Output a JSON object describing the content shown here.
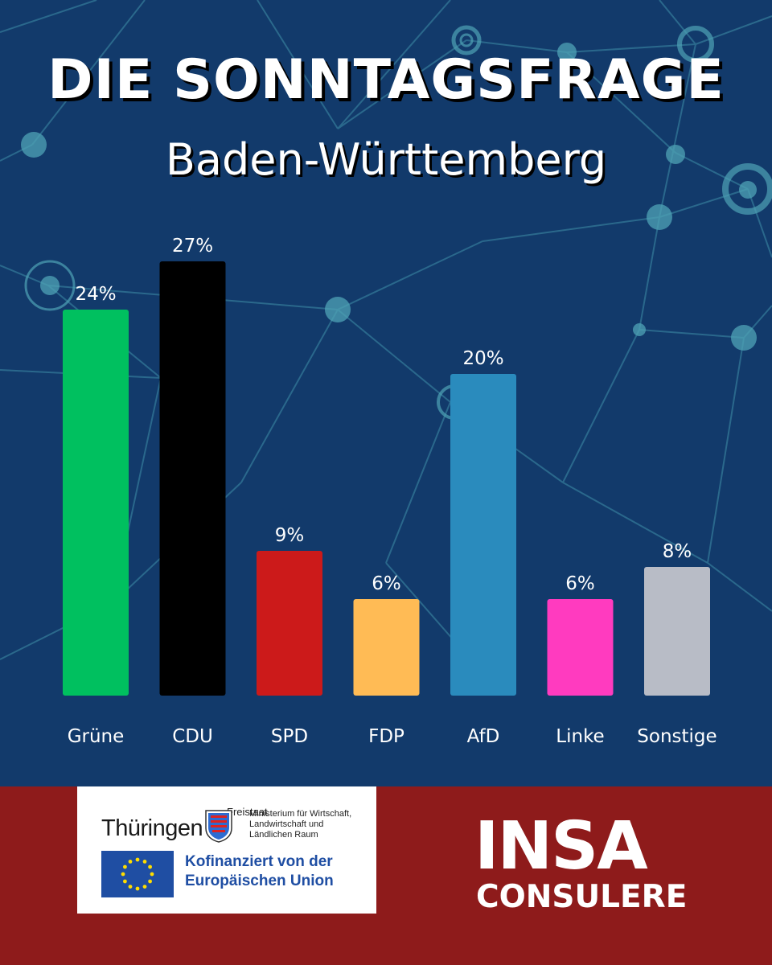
{
  "header": {
    "title": "DIE SONNTAGSFRAGE",
    "subtitle": "Baden-Württemberg"
  },
  "chart_data": {
    "type": "bar",
    "categories": [
      "Grüne",
      "CDU",
      "SPD",
      "FDP",
      "AfD",
      "Linke",
      "Sonstige"
    ],
    "values": [
      24,
      27,
      9,
      6,
      20,
      6,
      8
    ],
    "value_labels": [
      "24%",
      "27%",
      "9%",
      "6%",
      "20%",
      "6%",
      "8%"
    ],
    "colors": [
      "#00c05f",
      "#000000",
      "#cc1a1a",
      "#ffbb55",
      "#2a8bbd",
      "#ff3bbf",
      "#b8bcc6"
    ],
    "unit": "%",
    "ylim": [
      0,
      27
    ],
    "grid": false,
    "legend": "none",
    "title": "",
    "xlabel": "",
    "ylabel": ""
  },
  "footer": {
    "sponsor": {
      "state_small": "Freistaat",
      "state_name": "Thüringen",
      "ministry_line1": "Ministerium für Wirtschaft,",
      "ministry_line2": "Landwirtschaft und",
      "ministry_line3": "Ländlichen Raum",
      "eu_line1": "Kofinanziert von der",
      "eu_line2": "Europäischen Union",
      "eu_flag_color": "#1f4ea3"
    },
    "brand_top": "INSA",
    "brand_bottom": "CONSULERE",
    "background": "#8e1b1b"
  },
  "theme": {
    "background": "#123a6b",
    "network_color": "#4fa3b5"
  }
}
